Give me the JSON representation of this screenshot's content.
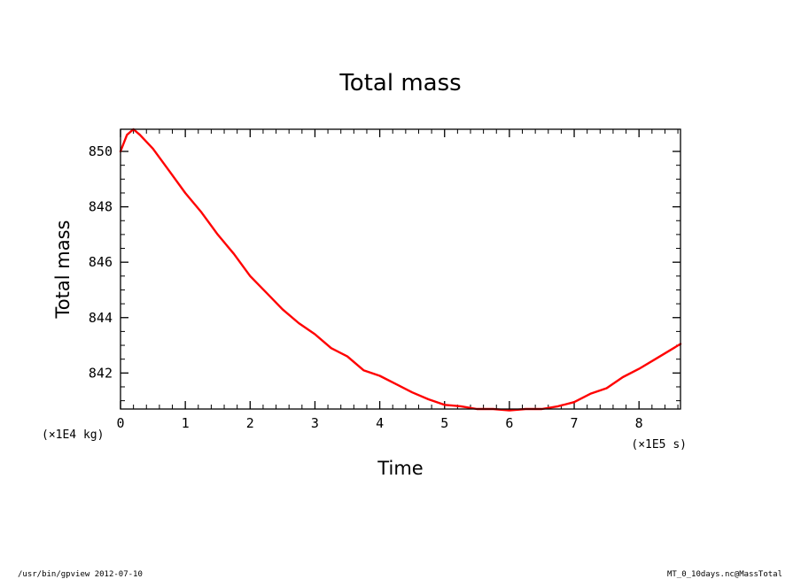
{
  "chart_data": {
    "type": "line",
    "title": "Total mass",
    "xlabel": "Time",
    "ylabel": "Total mass",
    "x_unit": "(×1E5 s)",
    "y_unit": "(×1E4 kg)",
    "xlim": [
      0,
      8.64
    ],
    "ylim": [
      840.7,
      850.8
    ],
    "xticks": [
      0,
      1,
      2,
      3,
      4,
      5,
      6,
      7,
      8
    ],
    "yticks": [
      842,
      844,
      846,
      848,
      850
    ],
    "grid": false,
    "line_color": "#ff0000",
    "series": [
      {
        "x": [
          0,
          0.1,
          0.2,
          0.3,
          0.5,
          0.75,
          1.0,
          1.25,
          1.5,
          1.75,
          2.0,
          2.25,
          2.5,
          2.75,
          3.0,
          3.25,
          3.5,
          3.75,
          4.0,
          4.25,
          4.5,
          4.75,
          5.0,
          5.25,
          5.5,
          5.75,
          6.0,
          6.25,
          6.5,
          6.75,
          7.0,
          7.25,
          7.5,
          7.75,
          8.0,
          8.25,
          8.5,
          8.64
        ],
        "y": [
          850.0,
          850.6,
          850.8,
          850.6,
          850.1,
          849.3,
          848.5,
          847.8,
          847.0,
          846.3,
          845.5,
          844.9,
          844.3,
          843.8,
          843.4,
          842.9,
          842.6,
          842.1,
          841.9,
          841.6,
          841.3,
          841.05,
          840.85,
          840.8,
          840.7,
          840.7,
          840.65,
          840.7,
          840.7,
          840.8,
          840.95,
          841.25,
          841.45,
          841.85,
          842.15,
          842.5,
          842.85,
          843.05
        ]
      }
    ]
  },
  "footer": {
    "left": "/usr/bin/gpview  2012-07-10",
    "right": "MT_0_10days.nc@MassTotal"
  }
}
